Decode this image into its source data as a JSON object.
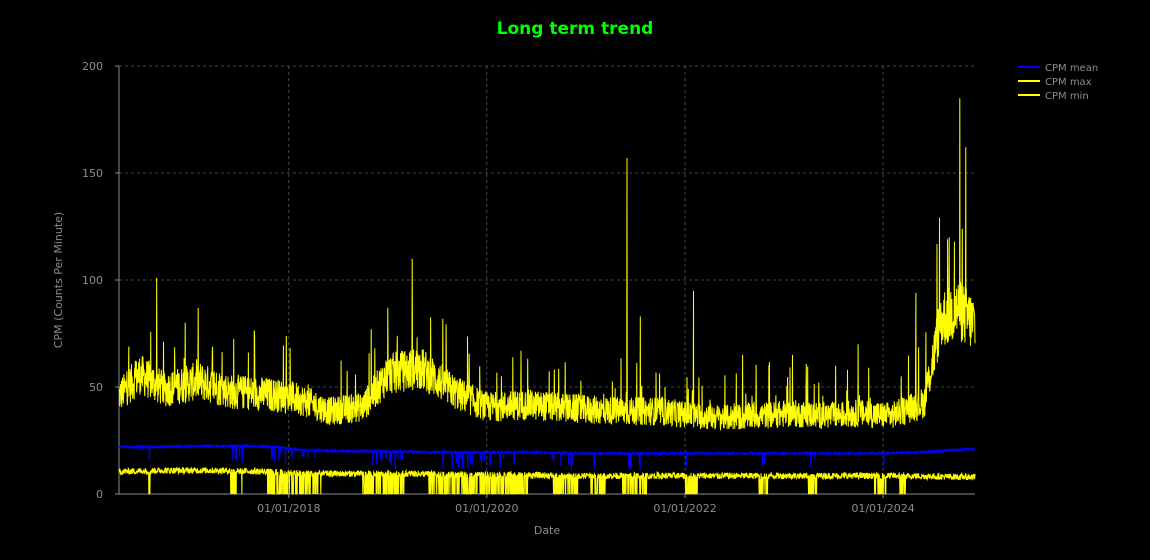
{
  "chart_data": {
    "type": "line",
    "title": "Long term trend",
    "xlabel": "Date",
    "ylabel": "CPM (Counts Per Minute)",
    "xlim": [
      "2016-04-15",
      "2024-12-05"
    ],
    "ylim": [
      0,
      200
    ],
    "yticks": [
      0,
      50,
      100,
      150,
      200
    ],
    "xticks": [
      {
        "date": "2018-01-01",
        "label": "01/01/2018"
      },
      {
        "date": "2020-01-01",
        "label": "01/01/2020"
      },
      {
        "date": "2022-01-01",
        "label": "01/01/2022"
      },
      {
        "date": "2024-01-01",
        "label": "01/01/2024"
      }
    ],
    "grid": true,
    "legend_position": "top-right",
    "series": [
      {
        "name": "CPM mean",
        "color": "#0000ff",
        "points": [
          [
            "2016-04-15",
            22
          ],
          [
            "2016-09-01",
            22
          ],
          [
            "2017-02-01",
            22.5
          ],
          [
            "2017-07-01",
            22.5
          ],
          [
            "2017-12-01",
            22
          ],
          [
            "2018-01-10",
            21
          ],
          [
            "2018-03-01",
            20.5
          ],
          [
            "2018-08-01",
            20
          ],
          [
            "2019-01-01",
            20
          ],
          [
            "2019-06-01",
            19.5
          ],
          [
            "2019-12-01",
            19.5
          ],
          [
            "2020-06-01",
            19.5
          ],
          [
            "2020-12-01",
            19
          ],
          [
            "2021-06-01",
            19
          ],
          [
            "2021-12-01",
            19
          ],
          [
            "2022-06-01",
            19
          ],
          [
            "2022-12-01",
            19
          ],
          [
            "2023-06-01",
            19
          ],
          [
            "2023-12-01",
            19
          ],
          [
            "2024-06-01",
            19.5
          ],
          [
            "2024-09-01",
            20.5
          ],
          [
            "2024-12-05",
            21
          ]
        ]
      },
      {
        "name": "CPM max",
        "color": "#ffff00",
        "points": [
          [
            "2016-04-15",
            45
          ],
          [
            "2016-07-01",
            55
          ],
          [
            "2016-10-01",
            48
          ],
          [
            "2017-02-01",
            52
          ],
          [
            "2017-06-01",
            47
          ],
          [
            "2017-10-01",
            46
          ],
          [
            "2018-02-01",
            44
          ],
          [
            "2018-06-01",
            38
          ],
          [
            "2018-10-01",
            40
          ],
          [
            "2019-01-01",
            55
          ],
          [
            "2019-05-01",
            58
          ],
          [
            "2019-09-01",
            47
          ],
          [
            "2020-01-01",
            40
          ],
          [
            "2020-06-01",
            41
          ],
          [
            "2020-12-01",
            39
          ],
          [
            "2021-06-01",
            38
          ],
          [
            "2021-10-01",
            38
          ],
          [
            "2022-02-01",
            36
          ],
          [
            "2022-06-01",
            35
          ],
          [
            "2022-10-01",
            36
          ],
          [
            "2023-02-01",
            37
          ],
          [
            "2023-06-01",
            36
          ],
          [
            "2023-10-01",
            37
          ],
          [
            "2024-02-01",
            36
          ],
          [
            "2024-06-01",
            42
          ],
          [
            "2024-08-01",
            80
          ],
          [
            "2024-10-01",
            85
          ],
          [
            "2024-12-05",
            78
          ]
        ],
        "peaks": [
          [
            "2016-09-01",
            101
          ],
          [
            "2018-11-01",
            77
          ],
          [
            "2019-01-01",
            87
          ],
          [
            "2019-04-01",
            110
          ],
          [
            "2021-06-01",
            157
          ],
          [
            "2021-07-20",
            83
          ],
          [
            "2022-02-01",
            95
          ],
          [
            "2022-08-01",
            65
          ],
          [
            "2023-02-01",
            65
          ],
          [
            "2023-10-01",
            70
          ],
          [
            "2024-05-01",
            94
          ],
          [
            "2024-09-01",
            120
          ],
          [
            "2024-10-10",
            185
          ],
          [
            "2024-11-01",
            162
          ]
        ]
      },
      {
        "name": "CPM min",
        "color": "#ffff00",
        "points": [
          [
            "2016-04-15",
            10.5
          ],
          [
            "2016-10-01",
            11
          ],
          [
            "2017-04-01",
            11
          ],
          [
            "2017-10-01",
            10.5
          ],
          [
            "2018-04-01",
            9.5
          ],
          [
            "2018-10-01",
            9.5
          ],
          [
            "2019-04-01",
            9.5
          ],
          [
            "2019-10-01",
            9
          ],
          [
            "2020-04-01",
            9
          ],
          [
            "2020-10-01",
            8.5
          ],
          [
            "2021-04-01",
            8.5
          ],
          [
            "2021-10-01",
            8.5
          ],
          [
            "2022-04-01",
            8.5
          ],
          [
            "2022-10-01",
            8.5
          ],
          [
            "2023-04-01",
            8.5
          ],
          [
            "2023-10-01",
            8.5
          ],
          [
            "2024-04-01",
            8.5
          ],
          [
            "2024-10-01",
            8
          ],
          [
            "2024-12-05",
            8
          ]
        ],
        "dropouts": [
          [
            "2016-08-01",
            "2016-08-10"
          ],
          [
            "2017-06-01",
            "2017-07-15"
          ],
          [
            "2017-10-15",
            "2018-04-30"
          ],
          [
            "2018-10-01",
            "2019-03-01"
          ],
          [
            "2019-06-01",
            "2020-06-01"
          ],
          [
            "2020-09-01",
            "2020-12-01"
          ],
          [
            "2021-01-15",
            "2021-03-15"
          ],
          [
            "2021-05-15",
            "2021-08-15"
          ],
          [
            "2022-01-01",
            "2022-02-15"
          ],
          [
            "2022-10-01",
            "2022-11-01"
          ],
          [
            "2023-04-01",
            "2023-05-01"
          ],
          [
            "2023-12-01",
            "2024-01-15"
          ],
          [
            "2024-03-01",
            "2024-04-01"
          ]
        ]
      }
    ]
  }
}
